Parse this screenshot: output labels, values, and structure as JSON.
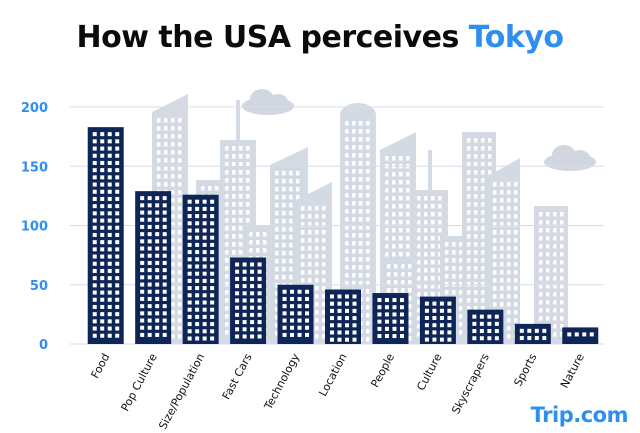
{
  "header": {
    "title_prefix": "How the USA perceives ",
    "title_highlight": "Tokyo"
  },
  "brand": {
    "label": "Trip.com"
  },
  "colors": {
    "bar": "#0e2557",
    "accent": "#2f8ff0",
    "axis_text": "#2f8ff0",
    "grid": "#d7dde8",
    "background_buildings": "#b2bccd"
  },
  "chart_data": {
    "type": "bar",
    "title": "How the USA perceives Tokyo",
    "xlabel": "",
    "ylabel": "",
    "ylim": [
      0,
      200
    ],
    "yticks": [
      0,
      50,
      100,
      150,
      200
    ],
    "grid": true,
    "categories": [
      "Food",
      "Pop Culture",
      "Size/Population",
      "Fast Cars",
      "Technology",
      "Location",
      "People",
      "Culture",
      "Skyscrapers",
      "Sports",
      "Nature"
    ],
    "values": [
      183,
      129,
      126,
      73,
      50,
      46,
      43,
      40,
      29,
      17,
      14
    ]
  }
}
